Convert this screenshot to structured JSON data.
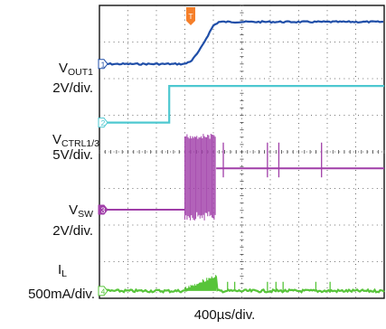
{
  "chart_data": {
    "type": "line",
    "timebase": "400µs/div.",
    "grid": "dotted 10x8 divisions",
    "trigger_marker": "T",
    "trigger_color": "#f57f2a",
    "x_unit": "div",
    "x_range": [
      0,
      10
    ],
    "series": [
      {
        "name": "VOUT1",
        "label_main": "V",
        "label_sub": "OUT1",
        "scale": "2V/div.",
        "channel": "1",
        "color": "#1f4ea8",
        "x": [
          0,
          3.0,
          3.25,
          3.5,
          3.75,
          4.0,
          4.2,
          10
        ],
        "y_div": [
          6.4,
          6.4,
          6.5,
          6.75,
          7.1,
          7.45,
          7.55,
          7.55
        ]
      },
      {
        "name": "VCTRL1/3",
        "label_main": "V",
        "label_sub": "CTRL1/3",
        "scale": "5V/div.",
        "channel": "2",
        "color": "#4dc8d0",
        "x": [
          0,
          2.45,
          2.45,
          10
        ],
        "y_div": [
          4.8,
          4.8,
          5.8,
          5.8
        ]
      },
      {
        "name": "VSW",
        "label_main": "V",
        "label_sub": "SW",
        "scale": "2V/div.",
        "channel": "3",
        "color": "#a03ea8",
        "baseline_div": 2.42,
        "burst_start_div": 3.0,
        "burst_end_div": 4.1,
        "burst_high_div": 4.5,
        "pulse_level_div": 3.55,
        "spikes_div": [
          4.35,
          5.9,
          6.3,
          7.8
        ]
      },
      {
        "name": "IL",
        "label_main": "I",
        "label_sub": "L",
        "scale": "500mA/div.",
        "channel": "4",
        "color": "#57c43a",
        "baseline_div": 0.2,
        "ramp_start_div": 3.0,
        "ramp_end_div": 4.1,
        "ramp_peak_div": 0.55,
        "spikes_div": [
          4.5,
          4.75,
          5.9,
          6.2,
          6.45,
          7.6,
          8.1
        ]
      }
    ]
  }
}
